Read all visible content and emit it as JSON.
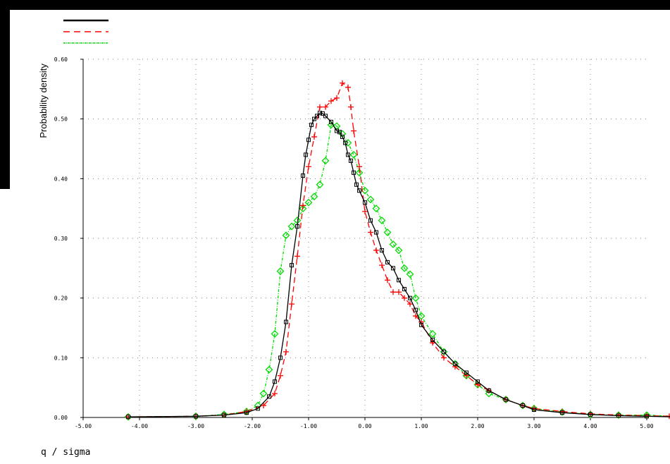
{
  "chart_data": {
    "type": "line",
    "title": "",
    "xlabel": "q / sigma",
    "ylabel": "Probability density",
    "xlim": [
      -5.0,
      5.0
    ],
    "ylim": [
      0.0,
      0.6
    ],
    "x_ticks": [
      "-5.00",
      "-4.00",
      "-3.00",
      "-2.00",
      "-1.00",
      "0.00",
      "1.00",
      "2.00",
      "3.00",
      "4.00",
      "5.00"
    ],
    "y_ticks": [
      "0.00",
      "0.10",
      "0.20",
      "0.30",
      "0.40",
      "0.50",
      "0.60"
    ],
    "grid": true,
    "legend_position": "top-left",
    "series": [
      {
        "color": "#000000",
        "line": "solid",
        "marker": "square",
        "x": [
          -4.2,
          -3.0,
          -2.5,
          -2.1,
          -1.9,
          -1.7,
          -1.6,
          -1.5,
          -1.4,
          -1.3,
          -1.2,
          -1.1,
          -1.05,
          -1.0,
          -0.95,
          -0.9,
          -0.85,
          -0.8,
          -0.75,
          -0.7,
          -0.6,
          -0.5,
          -0.45,
          -0.4,
          -0.35,
          -0.3,
          -0.25,
          -0.2,
          -0.15,
          -0.1,
          0.0,
          0.1,
          0.2,
          0.3,
          0.4,
          0.5,
          0.6,
          0.7,
          0.8,
          0.9,
          1.0,
          1.2,
          1.4,
          1.6,
          1.8,
          2.0,
          2.2,
          2.5,
          2.8,
          3.0,
          3.5,
          4.0,
          4.5,
          5.0,
          5.5
        ],
        "y": [
          0.001,
          0.002,
          0.004,
          0.008,
          0.015,
          0.035,
          0.06,
          0.1,
          0.16,
          0.255,
          0.32,
          0.405,
          0.44,
          0.465,
          0.49,
          0.5,
          0.505,
          0.51,
          0.509,
          0.505,
          0.495,
          0.48,
          0.478,
          0.47,
          0.46,
          0.44,
          0.43,
          0.41,
          0.39,
          0.38,
          0.36,
          0.33,
          0.31,
          0.28,
          0.26,
          0.25,
          0.23,
          0.215,
          0.2,
          0.18,
          0.155,
          0.13,
          0.11,
          0.09,
          0.075,
          0.06,
          0.045,
          0.03,
          0.02,
          0.013,
          0.008,
          0.005,
          0.003,
          0.002,
          0.001
        ]
      },
      {
        "color": "#ff0000",
        "line": "dashed",
        "marker": "plus",
        "x": [
          -4.2,
          -3.0,
          -2.5,
          -2.1,
          -1.8,
          -1.6,
          -1.5,
          -1.4,
          -1.3,
          -1.2,
          -1.1,
          -1.0,
          -0.9,
          -0.8,
          -0.7,
          -0.6,
          -0.5,
          -0.4,
          -0.3,
          -0.25,
          -0.2,
          -0.1,
          0.0,
          0.1,
          0.2,
          0.3,
          0.4,
          0.5,
          0.6,
          0.7,
          0.8,
          0.9,
          1.0,
          1.2,
          1.4,
          1.6,
          1.8,
          2.0,
          2.2,
          2.5,
          2.8,
          3.0,
          3.5,
          4.0,
          4.5,
          5.0,
          5.4
        ],
        "y": [
          0.001,
          0.002,
          0.004,
          0.01,
          0.02,
          0.04,
          0.07,
          0.11,
          0.19,
          0.27,
          0.355,
          0.42,
          0.47,
          0.52,
          0.52,
          0.53,
          0.535,
          0.56,
          0.553,
          0.52,
          0.48,
          0.42,
          0.345,
          0.31,
          0.28,
          0.255,
          0.23,
          0.21,
          0.21,
          0.2,
          0.19,
          0.17,
          0.16,
          0.125,
          0.1,
          0.085,
          0.07,
          0.055,
          0.045,
          0.03,
          0.02,
          0.015,
          0.01,
          0.006,
          0.004,
          0.003,
          0.002
        ]
      },
      {
        "color": "#00dd00",
        "line": "dash-dot",
        "marker": "diamond",
        "x": [
          -4.2,
          -3.0,
          -2.5,
          -2.1,
          -1.9,
          -1.8,
          -1.7,
          -1.6,
          -1.5,
          -1.4,
          -1.3,
          -1.2,
          -1.1,
          -1.0,
          -0.9,
          -0.8,
          -0.7,
          -0.6,
          -0.5,
          -0.4,
          -0.3,
          -0.2,
          -0.1,
          0.0,
          0.1,
          0.2,
          0.3,
          0.4,
          0.5,
          0.6,
          0.7,
          0.8,
          0.9,
          1.0,
          1.2,
          1.4,
          1.6,
          1.8,
          2.0,
          2.2,
          2.5,
          2.8,
          3.0,
          3.5,
          4.0,
          4.5,
          5.0,
          5.5
        ],
        "y": [
          0.001,
          0.002,
          0.005,
          0.01,
          0.02,
          0.04,
          0.08,
          0.14,
          0.245,
          0.305,
          0.32,
          0.33,
          0.35,
          0.36,
          0.37,
          0.39,
          0.43,
          0.49,
          0.488,
          0.475,
          0.46,
          0.44,
          0.41,
          0.38,
          0.365,
          0.35,
          0.33,
          0.31,
          0.29,
          0.28,
          0.25,
          0.24,
          0.2,
          0.17,
          0.14,
          0.11,
          0.09,
          0.07,
          0.055,
          0.04,
          0.03,
          0.02,
          0.015,
          0.009,
          0.005,
          0.004,
          0.004,
          0.002
        ]
      }
    ]
  }
}
